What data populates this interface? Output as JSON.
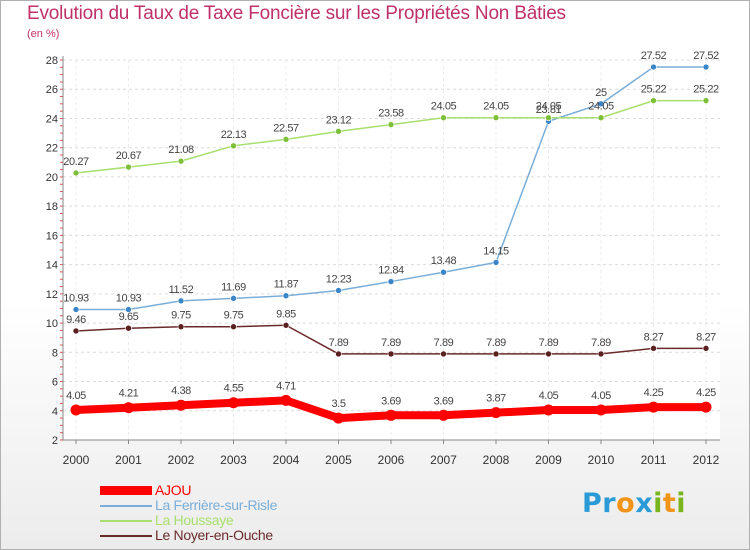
{
  "title": "Evolution du Taux de Taxe Foncière sur les Propriétés Non Bâties",
  "unit_label": "(en %)",
  "logo": {
    "letters": [
      "P",
      "r",
      "o",
      "x",
      "i",
      "t",
      "i"
    ],
    "colors": [
      "#2a9bd6",
      "#2a9bd6",
      "#f29418",
      "#2a9bd6",
      "#7ab51d",
      "#f29418",
      "#7ab51d"
    ]
  },
  "chart_data": {
    "type": "line",
    "title": "Evolution du Taux de Taxe Foncière sur les Propriétés Non Bâties",
    "ylabel": "(en %)",
    "xlabel": "",
    "ylim": [
      2,
      28
    ],
    "yticks": [
      2,
      4,
      6,
      8,
      10,
      12,
      14,
      16,
      18,
      20,
      22,
      24,
      26,
      28
    ],
    "categories": [
      "2000",
      "2001",
      "2002",
      "2003",
      "2004",
      "2005",
      "2006",
      "2007",
      "2008",
      "2009",
      "2010",
      "2011",
      "2012"
    ],
    "series": [
      {
        "name": "La Ferrière-sur-Risle",
        "color": "#7aaed8",
        "marker": "#3a85c8",
        "values": [
          10.93,
          10.93,
          11.52,
          11.69,
          11.87,
          12.23,
          12.84,
          13.48,
          14.15,
          23.81,
          25,
          27.52,
          27.52
        ],
        "labels": [
          "10.93",
          "10.93",
          "11.52",
          "11.69",
          "11.87",
          "12.23",
          "12.84",
          "13.48",
          "14.15",
          "23.81",
          "25",
          "27.52",
          "27.52"
        ]
      },
      {
        "name": "La Houssaye",
        "color": "#a8df6e",
        "marker": "#7cc03a",
        "values": [
          20.27,
          20.67,
          21.08,
          22.13,
          22.57,
          23.12,
          23.58,
          24.05,
          24.05,
          24.05,
          24.05,
          25.22,
          25.22
        ],
        "labels": [
          "20.27",
          "20.67",
          "21.08",
          "22.13",
          "22.57",
          "23.12",
          "23.58",
          "24.05",
          "24.05",
          "24.05",
          "24.05",
          "25.22",
          "25.22"
        ]
      },
      {
        "name": "Le Noyer-en-Ouche",
        "color": "#6b2a2a",
        "marker": "#5a1f1f",
        "values": [
          9.46,
          9.65,
          9.75,
          9.75,
          9.85,
          7.89,
          7.89,
          7.89,
          7.89,
          7.89,
          7.89,
          8.27,
          8.27
        ],
        "labels": [
          "9.46",
          "9.65",
          "9.75",
          "9.75",
          "9.85",
          "7.89",
          "7.89",
          "7.89",
          "7.89",
          "7.89",
          "7.89",
          "8.27",
          "8.27"
        ]
      },
      {
        "name": "AJOU",
        "color": "#ff0000",
        "marker": "#ff0000",
        "values": [
          4.05,
          4.21,
          4.38,
          4.55,
          4.71,
          3.5,
          3.69,
          3.69,
          3.87,
          4.05,
          4.05,
          4.25,
          4.25
        ],
        "labels": [
          "4.05",
          "4.21",
          "4.38",
          "4.55",
          "4.71",
          "3.5",
          "3.69",
          "3.69",
          "3.87",
          "4.05",
          "4.05",
          "4.25",
          "4.25"
        ]
      }
    ],
    "legend": [
      {
        "name": "AJOU",
        "color": "#ff0000"
      },
      {
        "name": "La Ferrière-sur-Risle",
        "color": "#7aaed8"
      },
      {
        "name": "La Houssaye",
        "color": "#a8df6e"
      },
      {
        "name": "Le Noyer-en-Ouche",
        "color": "#6b2a2a"
      }
    ]
  }
}
